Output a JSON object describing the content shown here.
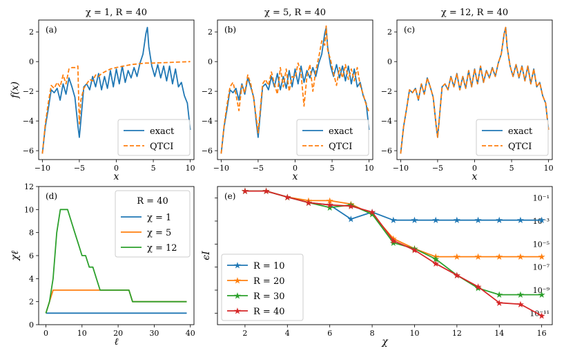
{
  "colors": {
    "blue": "#1f77b4",
    "orange": "#ff7f0e",
    "green": "#2ca02c",
    "red": "#d62728"
  },
  "chart_data": [
    {
      "id": "a",
      "type": "line",
      "panel_label": "(a)",
      "title": "χ = 1, R = 40",
      "xlabel": "x",
      "ylabel": "f(x)",
      "xlim": [
        -10.5,
        10.5
      ],
      "ylim": [
        -6.6,
        2.8
      ],
      "xticks": [
        -10,
        -5,
        0,
        5,
        10
      ],
      "yticks": [
        -6,
        -4,
        -2,
        0,
        2
      ],
      "legend": {
        "placement": "lower right",
        "entries": [
          "exact",
          "QTCI"
        ]
      },
      "series": [
        {
          "name": "exact",
          "color": "#1f77b4",
          "dash": "solid",
          "x": [
            -10,
            -9.6,
            -9.2,
            -8.8,
            -8.4,
            -8,
            -7.6,
            -7.2,
            -6.8,
            -6.4,
            -6,
            -5.6,
            -5.2,
            -5,
            -4.8,
            -4.4,
            -4,
            -3.6,
            -3.2,
            -2.8,
            -2.4,
            -2,
            -1.6,
            -1.2,
            -0.8,
            -0.4,
            0,
            0.4,
            0.8,
            1.2,
            1.6,
            2,
            2.4,
            2.8,
            3.2,
            3.6,
            4,
            4.2,
            4.4,
            4.8,
            5.2,
            5.6,
            6,
            6.4,
            6.8,
            7.2,
            7.6,
            8,
            8.4,
            8.8,
            9.2,
            9.6,
            10
          ],
          "y": [
            -6.2,
            -4.4,
            -3.2,
            -1.9,
            -2.1,
            -1.8,
            -2.6,
            -1.5,
            -2.2,
            -1.1,
            -1.7,
            -2.4,
            -4.3,
            -5.1,
            -4.0,
            -1.7,
            -1.5,
            -1.9,
            -1.0,
            -1.7,
            -0.8,
            -1.9,
            -1.0,
            -1.8,
            -0.6,
            -1.7,
            -0.5,
            -1.5,
            -0.3,
            -1.4,
            -0.6,
            -1.1,
            -0.4,
            -1.0,
            -0.1,
            0.5,
            1.9,
            2.3,
            1.0,
            -0.3,
            -1.0,
            -0.2,
            -1.1,
            -0.3,
            -1.3,
            -0.3,
            -1.5,
            -0.5,
            -1.7,
            -1.4,
            -2.3,
            -2.8,
            -4.6
          ]
        },
        {
          "name": "QTCI",
          "color": "#ff7f0e",
          "dash": "dashed",
          "x": [
            -10,
            -9.6,
            -9.2,
            -8.8,
            -8.4,
            -8,
            -7.6,
            -7.2,
            -6.8,
            -6.4,
            -6,
            -5.6,
            -5.2,
            -5,
            -4.8,
            -4.4,
            -4,
            -3.6,
            -3.2,
            -2.8,
            -2.4,
            -2,
            -1.6,
            -1.2,
            -0.8,
            -0.4,
            0,
            1,
            2,
            3,
            4,
            5,
            6,
            7,
            8,
            9,
            10
          ],
          "y": [
            -6.2,
            -4.2,
            -2.8,
            -1.6,
            -1.8,
            -1.4,
            -1.7,
            -0.9,
            -1.5,
            -0.5,
            -0.4,
            -0.4,
            -0.3,
            -4.2,
            -2.6,
            -1.8,
            -1.5,
            -1.2,
            -1.3,
            -0.9,
            -1.0,
            -0.8,
            -0.7,
            -0.6,
            -0.5,
            -0.45,
            -0.4,
            -0.3,
            -0.2,
            -0.15,
            -0.1,
            -0.1,
            -0.08,
            -0.06,
            -0.04,
            -0.02,
            0.0
          ]
        }
      ]
    },
    {
      "id": "b",
      "type": "line",
      "panel_label": "(b)",
      "title": "χ = 5, R = 40",
      "xlabel": "x",
      "ylabel": "",
      "xlim": [
        -10.5,
        10.5
      ],
      "ylim": [
        -6.6,
        2.8
      ],
      "xticks": [
        -10,
        -5,
        0,
        5,
        10
      ],
      "yticks": [
        -6,
        -4,
        -2,
        0,
        2
      ],
      "legend": {
        "placement": "lower right",
        "entries": [
          "exact",
          "QTCI"
        ]
      },
      "series": [
        {
          "name": "exact",
          "color": "#1f77b4",
          "dash": "solid",
          "x": [
            -10,
            -9.6,
            -9.2,
            -8.8,
            -8.4,
            -8,
            -7.6,
            -7.2,
            -6.8,
            -6.4,
            -6,
            -5.6,
            -5.2,
            -5,
            -4.8,
            -4.4,
            -4,
            -3.6,
            -3.2,
            -2.8,
            -2.4,
            -2,
            -1.6,
            -1.2,
            -0.8,
            -0.4,
            0,
            0.4,
            0.8,
            1.2,
            1.6,
            2,
            2.4,
            2.8,
            3.2,
            3.6,
            4,
            4.2,
            4.4,
            4.8,
            5.2,
            5.6,
            6,
            6.4,
            6.8,
            7.2,
            7.6,
            8,
            8.4,
            8.8,
            9.2,
            9.6,
            10
          ],
          "y": [
            -6.2,
            -4.4,
            -3.2,
            -1.9,
            -2.1,
            -1.8,
            -2.6,
            -1.5,
            -2.2,
            -1.1,
            -1.7,
            -2.4,
            -4.3,
            -5.1,
            -4.0,
            -1.7,
            -1.5,
            -1.9,
            -1.0,
            -1.7,
            -0.8,
            -1.9,
            -1.0,
            -1.8,
            -0.6,
            -1.7,
            -0.5,
            -1.5,
            -0.3,
            -1.4,
            -0.6,
            -1.1,
            -0.4,
            -1.0,
            -0.1,
            0.5,
            1.9,
            2.3,
            1.0,
            -0.3,
            -1.0,
            -0.2,
            -1.1,
            -0.3,
            -1.3,
            -0.3,
            -1.5,
            -0.5,
            -1.7,
            -1.4,
            -2.3,
            -2.8,
            -4.6
          ]
        },
        {
          "name": "QTCI",
          "color": "#ff7f0e",
          "dash": "dashed",
          "x": [
            -10,
            -9.6,
            -9.2,
            -8.8,
            -8.4,
            -8,
            -7.6,
            -7.2,
            -6.8,
            -6.4,
            -6,
            -5.6,
            -5.2,
            -5,
            -4.8,
            -4.4,
            -4,
            -3.6,
            -3.2,
            -2.8,
            -2.4,
            -2,
            -1.6,
            -1.2,
            -0.8,
            -0.4,
            0,
            0.4,
            0.8,
            1.2,
            1.6,
            2,
            2.4,
            2.8,
            3.2,
            3.6,
            4,
            4.2,
            4.4,
            4.8,
            5.2,
            5.6,
            6,
            6.4,
            6.8,
            7.2,
            7.6,
            8,
            8.4,
            8.8,
            9.2,
            9.6,
            10
          ],
          "y": [
            -6.2,
            -4.3,
            -2.9,
            -1.7,
            -1.4,
            -2.2,
            -3.3,
            -1.6,
            -2.1,
            -0.9,
            -1.5,
            -2.5,
            -4.0,
            -4.8,
            -3.7,
            -1.5,
            -1.2,
            -1.6,
            -0.7,
            -1.5,
            -2.2,
            -0.4,
            -1.7,
            -0.5,
            -2.0,
            -1.0,
            -1.1,
            -0.1,
            -0.8,
            -3.0,
            -1.0,
            -0.2,
            -2.0,
            -0.6,
            0.3,
            1.4,
            1.1,
            2.4,
            0.8,
            0.1,
            -0.8,
            -1.6,
            -0.4,
            -1.1,
            -0.2,
            -1.2,
            -0.5,
            -1.3,
            -0.4,
            -1.6,
            -2.2,
            -2.9,
            -3.4
          ]
        }
      ]
    },
    {
      "id": "c",
      "type": "line",
      "panel_label": "(c)",
      "title": "χ = 12, R = 40",
      "xlabel": "x",
      "ylabel": "",
      "xlim": [
        -10.5,
        10.5
      ],
      "ylim": [
        -6.6,
        2.8
      ],
      "xticks": [
        -10,
        -5,
        0,
        5,
        10
      ],
      "yticks": [
        -6,
        -4,
        -2,
        0,
        2
      ],
      "legend": {
        "placement": "lower right",
        "entries": [
          "exact",
          "QTCI"
        ]
      },
      "series": [
        {
          "name": "exact",
          "color": "#1f77b4",
          "dash": "solid",
          "x": [
            -10,
            -9.6,
            -9.2,
            -8.8,
            -8.4,
            -8,
            -7.6,
            -7.2,
            -6.8,
            -6.4,
            -6,
            -5.6,
            -5.2,
            -5,
            -4.8,
            -4.4,
            -4,
            -3.6,
            -3.2,
            -2.8,
            -2.4,
            -2,
            -1.6,
            -1.2,
            -0.8,
            -0.4,
            0,
            0.4,
            0.8,
            1.2,
            1.6,
            2,
            2.4,
            2.8,
            3.2,
            3.6,
            4,
            4.2,
            4.4,
            4.8,
            5.2,
            5.6,
            6,
            6.4,
            6.8,
            7.2,
            7.6,
            8,
            8.4,
            8.8,
            9.2,
            9.6,
            10
          ],
          "y": [
            -6.2,
            -4.4,
            -3.2,
            -1.9,
            -2.1,
            -1.8,
            -2.6,
            -1.5,
            -2.2,
            -1.1,
            -1.7,
            -2.4,
            -4.3,
            -5.1,
            -4.0,
            -1.7,
            -1.5,
            -1.9,
            -1.0,
            -1.7,
            -0.8,
            -1.9,
            -1.0,
            -1.8,
            -0.6,
            -1.7,
            -0.5,
            -1.5,
            -0.3,
            -1.4,
            -0.6,
            -1.1,
            -0.4,
            -1.0,
            -0.1,
            0.5,
            1.9,
            2.3,
            1.0,
            -0.3,
            -1.0,
            -0.2,
            -1.1,
            -0.3,
            -1.3,
            -0.3,
            -1.5,
            -0.5,
            -1.7,
            -1.4,
            -2.3,
            -2.8,
            -4.6
          ]
        },
        {
          "name": "QTCI",
          "color": "#ff7f0e",
          "dash": "dashed",
          "x": [
            -10,
            -9.6,
            -9.2,
            -8.8,
            -8.4,
            -8,
            -7.6,
            -7.2,
            -6.8,
            -6.4,
            -6,
            -5.6,
            -5.2,
            -5,
            -4.8,
            -4.4,
            -4,
            -3.6,
            -3.2,
            -2.8,
            -2.4,
            -2,
            -1.6,
            -1.2,
            -0.8,
            -0.4,
            0,
            0.4,
            0.8,
            1.2,
            1.6,
            2,
            2.4,
            2.8,
            3.2,
            3.6,
            4,
            4.2,
            4.4,
            4.8,
            5.2,
            5.6,
            6,
            6.4,
            6.8,
            7.2,
            7.6,
            8,
            8.4,
            8.8,
            9.2,
            9.6,
            10
          ],
          "y": [
            -6.2,
            -4.4,
            -3.2,
            -1.9,
            -2.1,
            -1.8,
            -2.6,
            -1.5,
            -2.2,
            -1.1,
            -1.7,
            -2.4,
            -4.3,
            -5.1,
            -4.0,
            -1.7,
            -1.5,
            -1.9,
            -1.0,
            -1.7,
            -0.8,
            -1.9,
            -1.0,
            -1.8,
            -0.6,
            -1.7,
            -0.5,
            -1.5,
            -0.3,
            -1.4,
            -0.6,
            -1.1,
            -0.4,
            -1.0,
            -0.1,
            0.5,
            1.9,
            2.3,
            1.0,
            -0.3,
            -1.0,
            -0.2,
            -1.1,
            -0.3,
            -1.3,
            -0.3,
            -1.5,
            -0.5,
            -1.7,
            -1.4,
            -2.3,
            -2.8,
            -4.6
          ]
        }
      ]
    },
    {
      "id": "d",
      "type": "line",
      "panel_label": "(d)",
      "title": "",
      "xlabel": "ℓ",
      "ylabel": "χℓ",
      "xlim": [
        -2,
        41
      ],
      "ylim": [
        0,
        12
      ],
      "xticks": [
        0,
        10,
        20,
        30,
        40
      ],
      "yticks": [
        0,
        2,
        4,
        6,
        8,
        10,
        12
      ],
      "legend": {
        "placement": "upper right",
        "title": "R = 40",
        "entries": [
          "χ = 1",
          "χ = 5",
          "χ = 12"
        ]
      },
      "series": [
        {
          "name": "χ = 1",
          "color": "#1f77b4",
          "x": [
            0,
            39
          ],
          "y": [
            1,
            1
          ]
        },
        {
          "name": "χ = 5",
          "color": "#ff7f0e",
          "x": [
            0,
            1,
            2,
            15,
            23,
            24,
            39
          ],
          "y": [
            1,
            2,
            3,
            3,
            3,
            2,
            2
          ]
        },
        {
          "name": "χ = 12",
          "color": "#2ca02c",
          "x": [
            0,
            1,
            2,
            3,
            4,
            5,
            6,
            7,
            8,
            9,
            10,
            11,
            12,
            13,
            14,
            15,
            16,
            22,
            23,
            24,
            39
          ],
          "y": [
            1,
            2,
            4,
            8,
            10,
            10,
            10,
            9,
            8,
            7,
            6,
            6,
            5,
            5,
            4,
            3,
            3,
            3,
            3,
            2,
            2
          ]
        }
      ]
    },
    {
      "id": "e",
      "type": "line",
      "panel_label": "(e)",
      "title": "",
      "xlabel": "χ",
      "ylabel": "ϵI",
      "log_y": true,
      "xlim": [
        0.7,
        16.5
      ],
      "ylim": [
        1e-12,
        1
      ],
      "xticks": [
        2,
        4,
        6,
        8,
        10,
        12,
        14,
        16
      ],
      "yticks": [
        1e-11,
        1e-09,
        1e-07,
        1e-05,
        0.001,
        0.1
      ],
      "ytick_labels": [
        "10⁻¹¹",
        "10⁻⁹",
        "10⁻⁷",
        "10⁻⁵",
        "10⁻³",
        "10⁻¹"
      ],
      "legend": {
        "placement": "lower left",
        "entries": [
          "R = 10",
          "R = 20",
          "R = 30",
          "R = 40"
        ]
      },
      "series": [
        {
          "name": "R = 10",
          "color": "#1f77b4",
          "x": [
            2,
            3,
            4,
            5,
            6,
            7,
            8,
            9,
            10,
            11,
            12,
            13,
            14,
            15,
            16
          ],
          "y": [
            0.4,
            0.4,
            0.12,
            0.04,
            0.025,
            0.0015,
            0.006,
            0.0012,
            0.0012,
            0.0012,
            0.0012,
            0.0012,
            0.0012,
            0.0012,
            0.0012
          ]
        },
        {
          "name": "R = 20",
          "color": "#ff7f0e",
          "x": [
            2,
            3,
            4,
            5,
            6,
            7,
            8,
            9,
            10,
            11,
            12,
            13,
            14,
            15,
            16
          ],
          "y": [
            0.4,
            0.4,
            0.12,
            0.06,
            0.06,
            0.03,
            0.004,
            3e-05,
            4e-06,
            8e-07,
            8e-07,
            8e-07,
            8e-07,
            8e-07,
            8e-07
          ]
        },
        {
          "name": "R = 30",
          "color": "#2ca02c",
          "x": [
            2,
            3,
            4,
            5,
            6,
            7,
            8,
            9,
            10,
            11,
            12,
            13,
            14,
            15,
            16
          ],
          "y": [
            0.4,
            0.4,
            0.12,
            0.04,
            0.015,
            0.025,
            0.004,
            1.3e-05,
            4e-06,
            5e-07,
            2e-08,
            1.5e-09,
            4e-10,
            4e-10,
            4e-10
          ]
        },
        {
          "name": "R = 40",
          "color": "#d62728",
          "x": [
            2,
            3,
            4,
            5,
            6,
            7,
            8,
            9,
            10,
            11,
            12,
            13,
            14,
            15,
            16
          ],
          "y": [
            0.4,
            0.4,
            0.12,
            0.04,
            0.025,
            0.02,
            0.006,
            2e-05,
            3e-06,
            2e-07,
            2e-08,
            2e-09,
            8e-11,
            6e-11,
            6e-12
          ]
        }
      ]
    }
  ]
}
